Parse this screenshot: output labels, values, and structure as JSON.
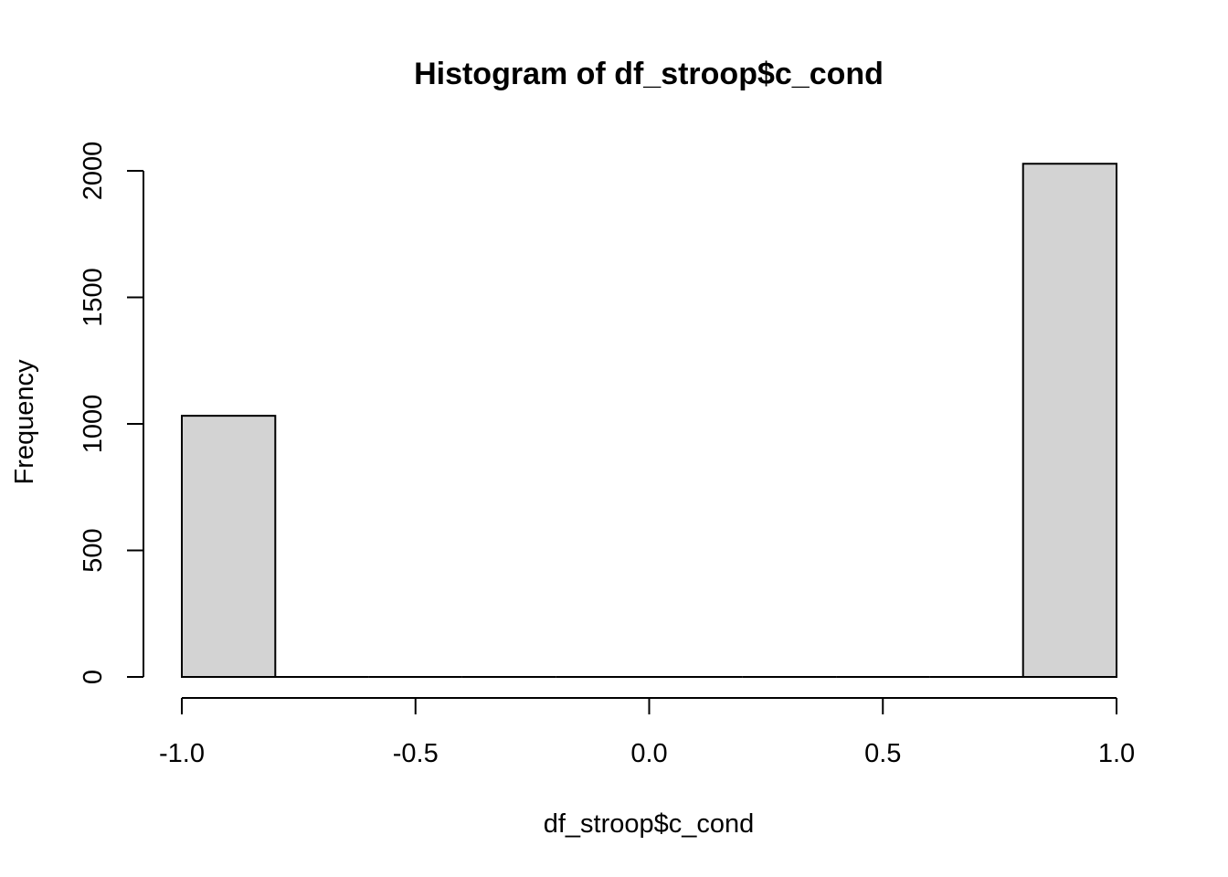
{
  "chart_data": {
    "type": "bar",
    "title": "Histogram of df_stroop$c_cond",
    "xlabel": "df_stroop$c_cond",
    "ylabel": "Frequency",
    "xlim": [
      -1.0,
      1.0
    ],
    "ylim": [
      0,
      2000
    ],
    "x_ticks": [
      -1.0,
      -0.5,
      0.0,
      0.5,
      1.0
    ],
    "x_tick_labels": [
      "-1.0",
      "-0.5",
      "0.0",
      "0.5",
      "1.0"
    ],
    "y_ticks": [
      0,
      500,
      1000,
      1500,
      2000
    ],
    "y_tick_labels": [
      "0",
      "500",
      "1000",
      "1500",
      "2000"
    ],
    "bins": [
      {
        "start": -1.0,
        "end": -0.8,
        "count": 1032
      },
      {
        "start": -0.8,
        "end": -0.6,
        "count": 0
      },
      {
        "start": -0.6,
        "end": -0.4,
        "count": 0
      },
      {
        "start": -0.4,
        "end": -0.2,
        "count": 0
      },
      {
        "start": -0.2,
        "end": 0.0,
        "count": 0
      },
      {
        "start": 0.0,
        "end": 0.2,
        "count": 0
      },
      {
        "start": 0.2,
        "end": 0.4,
        "count": 0
      },
      {
        "start": 0.4,
        "end": 0.6,
        "count": 0
      },
      {
        "start": 0.6,
        "end": 0.8,
        "count": 0
      },
      {
        "start": 0.8,
        "end": 1.0,
        "count": 2028
      }
    ],
    "bar_color": "#d3d3d3",
    "grid": false
  }
}
